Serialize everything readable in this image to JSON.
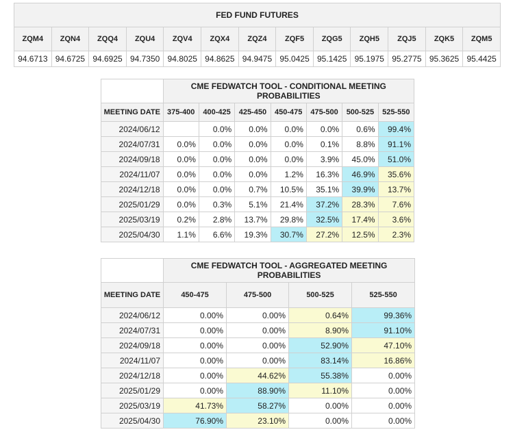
{
  "futures": {
    "title": "FED FUND FUTURES",
    "headers": [
      "ZQM4",
      "ZQN4",
      "ZQQ4",
      "ZQU4",
      "ZQV4",
      "ZQX4",
      "ZQZ4",
      "ZQF5",
      "ZQG5",
      "ZQH5",
      "ZQJ5",
      "ZQK5",
      "ZQM5"
    ],
    "values": [
      "94.6713",
      "94.6725",
      "94.6925",
      "94.7350",
      "94.8025",
      "94.8625",
      "94.9475",
      "95.0425",
      "95.1425",
      "95.1975",
      "95.2775",
      "95.3625",
      "95.4425"
    ]
  },
  "conditional": {
    "title": "CME FEDWATCH TOOL - CONDITIONAL MEETING PROBABILITIES",
    "headers": [
      "MEETING DATE",
      "375-400",
      "400-425",
      "425-450",
      "450-475",
      "475-500",
      "500-525",
      "525-550"
    ],
    "rows": [
      {
        "date": "2024/06/12",
        "cells": [
          "",
          "0.0%",
          "0.0%",
          "0.0%",
          "0.0%",
          "0.6%",
          "99.4%"
        ],
        "hl": [
          "",
          "",
          "",
          "",
          "",
          "",
          "c"
        ]
      },
      {
        "date": "2024/07/31",
        "cells": [
          "0.0%",
          "0.0%",
          "0.0%",
          "0.0%",
          "0.1%",
          "8.8%",
          "91.1%"
        ],
        "hl": [
          "",
          "",
          "",
          "",
          "",
          "",
          "c"
        ]
      },
      {
        "date": "2024/09/18",
        "cells": [
          "0.0%",
          "0.0%",
          "0.0%",
          "0.0%",
          "3.9%",
          "45.0%",
          "51.0%"
        ],
        "hl": [
          "",
          "",
          "",
          "",
          "",
          "",
          "c"
        ]
      },
      {
        "date": "2024/11/07",
        "cells": [
          "0.0%",
          "0.0%",
          "0.0%",
          "1.2%",
          "16.3%",
          "46.9%",
          "35.6%"
        ],
        "hl": [
          "",
          "",
          "",
          "",
          "",
          "c",
          "y"
        ]
      },
      {
        "date": "2024/12/18",
        "cells": [
          "0.0%",
          "0.0%",
          "0.7%",
          "10.5%",
          "35.1%",
          "39.9%",
          "13.7%"
        ],
        "hl": [
          "",
          "",
          "",
          "",
          "",
          "c",
          "y"
        ]
      },
      {
        "date": "2025/01/29",
        "cells": [
          "0.0%",
          "0.3%",
          "5.1%",
          "21.4%",
          "37.2%",
          "28.3%",
          "7.6%"
        ],
        "hl": [
          "",
          "",
          "",
          "",
          "c",
          "y",
          "y"
        ]
      },
      {
        "date": "2025/03/19",
        "cells": [
          "0.2%",
          "2.8%",
          "13.7%",
          "29.8%",
          "32.5%",
          "17.4%",
          "3.6%"
        ],
        "hl": [
          "",
          "",
          "",
          "",
          "c",
          "y",
          "y"
        ]
      },
      {
        "date": "2025/04/30",
        "cells": [
          "1.1%",
          "6.6%",
          "19.3%",
          "30.7%",
          "27.2%",
          "12.5%",
          "2.3%"
        ],
        "hl": [
          "",
          "",
          "",
          "c",
          "y",
          "y",
          "y"
        ]
      }
    ]
  },
  "aggregated": {
    "title": "CME FEDWATCH TOOL - AGGREGATED MEETING PROBABILITIES",
    "headers": [
      "MEETING DATE",
      "450-475",
      "475-500",
      "500-525",
      "525-550"
    ],
    "rows": [
      {
        "date": "2024/06/12",
        "cells": [
          "0.00%",
          "0.00%",
          "0.64%",
          "99.36%"
        ],
        "hl": [
          "",
          "",
          "y",
          "c"
        ]
      },
      {
        "date": "2024/07/31",
        "cells": [
          "0.00%",
          "0.00%",
          "8.90%",
          "91.10%"
        ],
        "hl": [
          "",
          "",
          "y",
          "c"
        ]
      },
      {
        "date": "2024/09/18",
        "cells": [
          "0.00%",
          "0.00%",
          "52.90%",
          "47.10%"
        ],
        "hl": [
          "",
          "",
          "c",
          "y"
        ]
      },
      {
        "date": "2024/11/07",
        "cells": [
          "0.00%",
          "0.00%",
          "83.14%",
          "16.86%"
        ],
        "hl": [
          "",
          "",
          "c",
          "y"
        ]
      },
      {
        "date": "2024/12/18",
        "cells": [
          "0.00%",
          "44.62%",
          "55.38%",
          "0.00%"
        ],
        "hl": [
          "",
          "y",
          "c",
          ""
        ]
      },
      {
        "date": "2025/01/29",
        "cells": [
          "0.00%",
          "88.90%",
          "11.10%",
          "0.00%"
        ],
        "hl": [
          "",
          "c",
          "y",
          ""
        ]
      },
      {
        "date": "2025/03/19",
        "cells": [
          "41.73%",
          "58.27%",
          "0.00%",
          "0.00%"
        ],
        "hl": [
          "y",
          "c",
          "",
          ""
        ]
      },
      {
        "date": "2025/04/30",
        "cells": [
          "76.90%",
          "23.10%",
          "0.00%",
          "0.00%"
        ],
        "hl": [
          "c",
          "y",
          "",
          ""
        ]
      }
    ]
  }
}
